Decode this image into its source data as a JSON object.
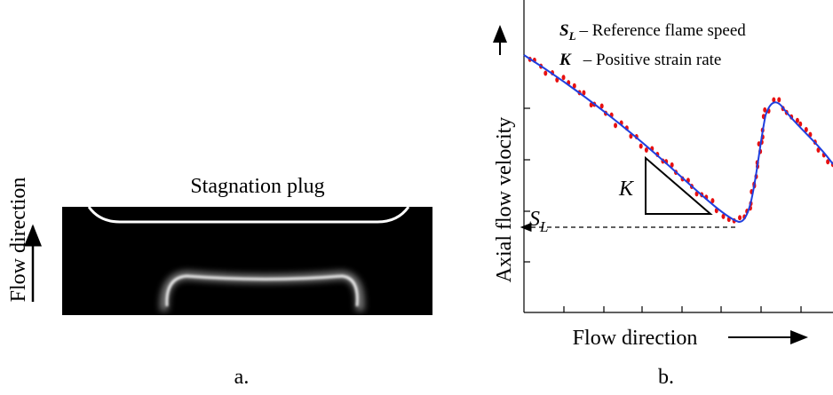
{
  "panel_a": {
    "plug_label": "Stagnation plug",
    "y_label": "Flow direction",
    "caption": "a."
  },
  "panel_b": {
    "legend": [
      {
        "symbol": "S",
        "subscript": "L",
        "text": "– Reference flame speed"
      },
      {
        "symbol": "K",
        "text": "– Positive strain rate"
      }
    ],
    "sl_label": {
      "symbol": "S",
      "subscript": "L"
    },
    "k_label": "K",
    "y_label": "Axial flow velocity",
    "x_label": "Flow direction",
    "caption": "b."
  }
}
